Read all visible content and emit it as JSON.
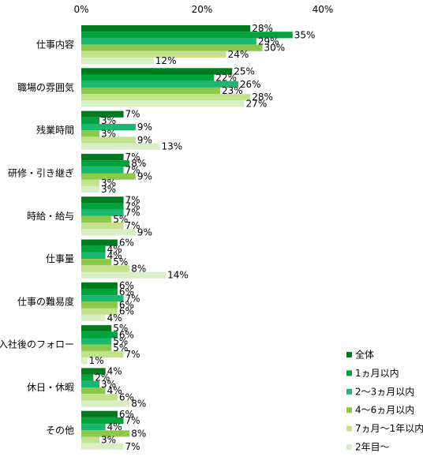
{
  "chart_data": {
    "type": "bar",
    "orientation": "horizontal",
    "xlim": [
      0,
      40
    ],
    "ticks": [
      0,
      20,
      40
    ],
    "tick_labels": [
      "0%",
      "20%",
      "40%"
    ],
    "value_suffix": "%",
    "grid": false,
    "legend_position": "right-bottom",
    "categories": [
      "仕事内容",
      "職場の雰囲気",
      "残業時間",
      "研修・引き継ぎ",
      "時給・給与",
      "仕事量",
      "仕事の難易度",
      "入社後のフォロー",
      "休日・休暇",
      "その他"
    ],
    "series": [
      {
        "name": "全体",
        "color": "#007a1f",
        "values": [
          28,
          25,
          7,
          7,
          7,
          6,
          6,
          5,
          4,
          6
        ]
      },
      {
        "name": "1ヵ月以内",
        "color": "#00a33c",
        "values": [
          35,
          22,
          3,
          8,
          7,
          4,
          6,
          6,
          2,
          7
        ]
      },
      {
        "name": "2～3ヵ月以内",
        "color": "#19b76f",
        "values": [
          29,
          26,
          9,
          7,
          7,
          4,
          7,
          5,
          3,
          4
        ]
      },
      {
        "name": "4～6ヵ月以内",
        "color": "#8cc94a",
        "values": [
          30,
          23,
          3,
          9,
          5,
          5,
          6,
          5,
          4,
          8
        ]
      },
      {
        "name": "7ヵ月～1年以内",
        "color": "#c3e28c",
        "values": [
          24,
          28,
          9,
          3,
          7,
          8,
          6,
          7,
          6,
          3
        ]
      },
      {
        "name": "2年目～",
        "color": "#d9eec4",
        "values": [
          12,
          27,
          13,
          3,
          9,
          14,
          4,
          1,
          8,
          7
        ]
      }
    ]
  }
}
